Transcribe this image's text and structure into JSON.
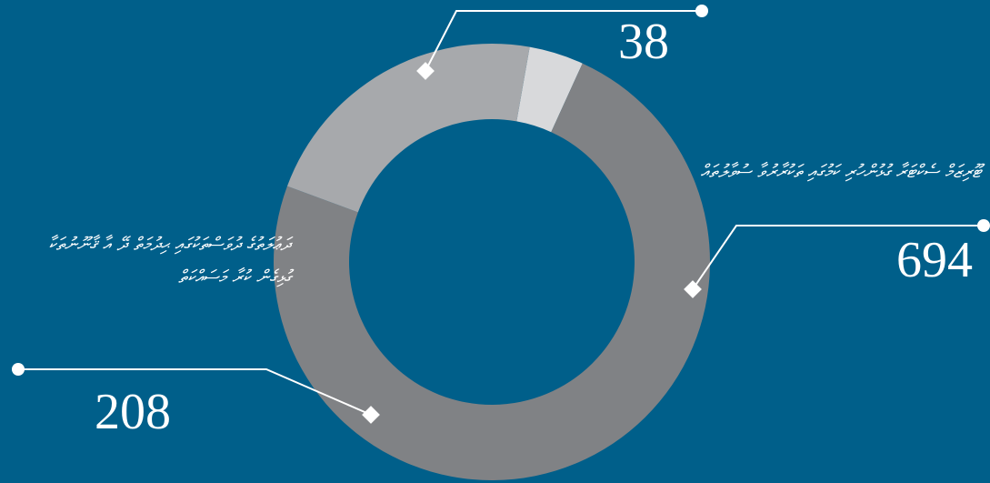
{
  "chart_data": {
    "type": "pie",
    "style": "donut",
    "background": "#005f8a",
    "slices": [
      {
        "value": 38,
        "color": "#d8d9db",
        "label": ""
      },
      {
        "value": 694,
        "color": "#808285",
        "label": "ޓޫރިޒަމް ސެކްޓަރާ ގުޅުންހުރި ކަމުގައި ތަކުރާރުވާ ސުވާލުތައް"
      },
      {
        "value": 208,
        "color": "#a7a9ac",
        "label": "ދަޢުލަތުގެ ދުވަސްތަކުގައި ޙިދުމަތް ދޭ އާ ޤާނޫނުތަކާ ގުޅިގެން ކުރާ މަސައްކަތް"
      }
    ],
    "value_labels": [
      "38",
      "694",
      "208"
    ]
  }
}
